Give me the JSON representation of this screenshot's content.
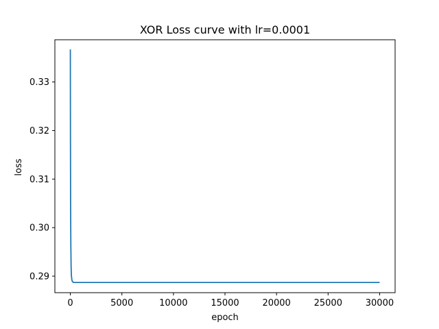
{
  "chart_data": {
    "type": "line",
    "title": "XOR Loss curve with lr=0.0001",
    "xlabel": "epoch",
    "ylabel": "loss",
    "xlim": [
      -1500,
      31500
    ],
    "ylim": [
      0.2866,
      0.3387
    ],
    "xticks": [
      0,
      5000,
      10000,
      15000,
      20000,
      25000,
      30000
    ],
    "yticks": [
      0.29,
      0.3,
      0.31,
      0.32,
      0.33
    ],
    "grid": false,
    "series": [
      {
        "color": "#1f77b4",
        "x": [
          0,
          10,
          25,
          50,
          75,
          100,
          150,
          200,
          300,
          500,
          1000,
          2000,
          5000,
          10000,
          15000,
          20000,
          25000,
          30000
        ],
        "y": [
          0.3367,
          0.32,
          0.305,
          0.296,
          0.292,
          0.2902,
          0.2892,
          0.2889,
          0.2887,
          0.2887,
          0.2887,
          0.2887,
          0.2887,
          0.2887,
          0.2887,
          0.2887,
          0.2887,
          0.2887
        ]
      }
    ]
  }
}
